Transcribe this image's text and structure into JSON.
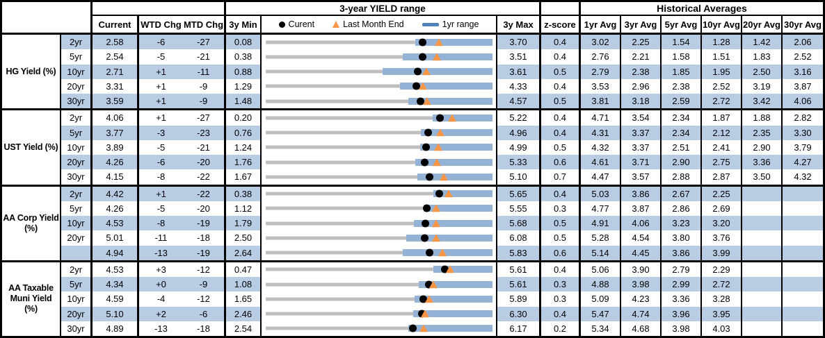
{
  "colors": {
    "row_shade": "#b8cce4",
    "range_bar_1yr": "#95b3d7",
    "full_range_track": "#bfbfbf",
    "current_dot": "#000000",
    "last_month_end_triangle": "#f79646",
    "legend_bar_swatch": "#4f81bd",
    "border": "#000000"
  },
  "chart_data": {
    "type": "table",
    "chart_column_title": "3-year YIELD range",
    "historical_title": "Historical Averages",
    "columns": {
      "current": "Current",
      "wtd_chg": "WTD Chg",
      "mtd_chg": "MTD Chg",
      "min_3y": "3y Min",
      "max_3y": "3y Max",
      "z_score": "z-score"
    },
    "avg_columns": [
      "1yr Avg",
      "3yr Avg",
      "5yr Avg",
      "10yr Avg",
      "20yr Avg",
      "30yr Avg"
    ],
    "legend": [
      {
        "marker": "dot",
        "label": "Curent"
      },
      {
        "marker": "triangle",
        "label": "Last Month End"
      },
      {
        "marker": "bar",
        "label": "1yr range"
      }
    ],
    "chart_notes": "Each row: gray track spans 3y Min to 3y Max; blue bar is 1yr range (r1min to 3y Max); black dot = Current; orange triangle = Last Month End (lme).",
    "groups": [
      {
        "label": "HG Yield (%)",
        "rows": [
          {
            "tenor": "2yr",
            "current": "2.58",
            "wtd": "-6",
            "mtd": "-27",
            "min": "0.08",
            "max": "3.70",
            "z": "0.4",
            "avgs": [
              "3.02",
              "2.25",
              "1.54",
              "1.28",
              "1.42",
              "2.06"
            ],
            "lme": 2.85,
            "r1min": 2.47
          },
          {
            "tenor": "5yr",
            "current": "2.54",
            "wtd": "-5",
            "mtd": "-21",
            "min": "0.38",
            "max": "3.51",
            "z": "0.4",
            "avgs": [
              "2.76",
              "2.21",
              "1.58",
              "1.51",
              "1.83",
              "2.52"
            ],
            "lme": 2.75,
            "r1min": 2.27
          },
          {
            "tenor": "10yr",
            "current": "2.71",
            "wtd": "+1",
            "mtd": "-11",
            "min": "0.88",
            "max": "3.61",
            "z": "0.5",
            "avgs": [
              "2.79",
              "2.38",
              "1.85",
              "1.95",
              "2.50",
              "3.16"
            ],
            "lme": 2.82,
            "r1min": 2.29
          },
          {
            "tenor": "20yr",
            "current": "3.31",
            "wtd": "+1",
            "mtd": "-9",
            "min": "1.29",
            "max": "4.33",
            "z": "0.4",
            "avgs": [
              "3.53",
              "2.96",
              "2.38",
              "2.52",
              "3.19",
              "3.87"
            ],
            "lme": 3.4,
            "r1min": 3.09
          },
          {
            "tenor": "30yr",
            "current": "3.59",
            "wtd": "+1",
            "mtd": "-9",
            "min": "1.48",
            "max": "4.57",
            "z": "0.5",
            "avgs": [
              "3.81",
              "3.18",
              "2.59",
              "2.72",
              "3.42",
              "4.06"
            ],
            "lme": 3.68,
            "r1min": 3.42
          }
        ]
      },
      {
        "label": "UST Yield (%)",
        "rows": [
          {
            "tenor": "2yr",
            "current": "4.06",
            "wtd": "+1",
            "mtd": "-27",
            "min": "0.20",
            "max": "5.22",
            "z": "0.4",
            "avgs": [
              "4.71",
              "3.54",
              "2.34",
              "1.87",
              "1.88",
              "2.82"
            ],
            "lme": 4.33,
            "r1min": 3.89
          },
          {
            "tenor": "5yr",
            "current": "3.77",
            "wtd": "-3",
            "mtd": "-23",
            "min": "0.76",
            "max": "4.96",
            "z": "0.4",
            "avgs": [
              "4.31",
              "3.37",
              "2.34",
              "2.12",
              "2.35",
              "3.30"
            ],
            "lme": 4.0,
            "r1min": 3.63
          },
          {
            "tenor": "10yr",
            "current": "3.89",
            "wtd": "-5",
            "mtd": "-21",
            "min": "1.24",
            "max": "4.99",
            "z": "0.5",
            "avgs": [
              "4.32",
              "3.37",
              "2.51",
              "2.41",
              "2.90",
              "3.79"
            ],
            "lme": 4.1,
            "r1min": 3.79
          },
          {
            "tenor": "20yr",
            "current": "4.26",
            "wtd": "-6",
            "mtd": "-20",
            "min": "1.76",
            "max": "5.33",
            "z": "0.6",
            "avgs": [
              "4.61",
              "3.71",
              "2.90",
              "2.75",
              "3.36",
              "4.27"
            ],
            "lme": 4.46,
            "r1min": 4.11
          },
          {
            "tenor": "30yr",
            "current": "4.15",
            "wtd": "-8",
            "mtd": "-22",
            "min": "1.67",
            "max": "5.10",
            "z": "0.7",
            "avgs": [
              "4.47",
              "3.57",
              "2.88",
              "2.87",
              "3.50",
              "4.32"
            ],
            "lme": 4.37,
            "r1min": 3.96
          }
        ]
      },
      {
        "label": "AA Corp Yield\n(%)",
        "rows": [
          {
            "tenor": "2yr",
            "current": "4.42",
            "wtd": "+1",
            "mtd": "-22",
            "min": "0.38",
            "max": "5.65",
            "z": "0.4",
            "avgs": [
              "5.03",
              "3.86",
              "2.67",
              "2.25",
              "",
              ""
            ],
            "lme": 4.64,
            "r1min": 4.28
          },
          {
            "tenor": "5yr",
            "current": "4.26",
            "wtd": "-5",
            "mtd": "-20",
            "min": "1.12",
            "max": "5.55",
            "z": "0.3",
            "avgs": [
              "4.77",
              "3.87",
              "2.86",
              "2.69",
              "",
              ""
            ],
            "lme": 4.46,
            "r1min": 4.2
          },
          {
            "tenor": "10yr",
            "current": "4.53",
            "wtd": "-8",
            "mtd": "-19",
            "min": "1.79",
            "max": "5.68",
            "z": "0.5",
            "avgs": [
              "4.91",
              "4.06",
              "3.23",
              "3.20",
              "",
              ""
            ],
            "lme": 4.72,
            "r1min": 4.33
          },
          {
            "tenor": "20yr",
            "current": "5.01",
            "wtd": "-11",
            "mtd": "-18",
            "min": "2.50",
            "max": "6.08",
            "z": "0.5",
            "avgs": [
              "5.28",
              "4.54",
              "3.80",
              "3.76",
              "",
              ""
            ],
            "lme": 5.19,
            "r1min": 4.72
          },
          {
            "tenor": "",
            "current": "4.94",
            "wtd": "-13",
            "mtd": "-19",
            "min": "2.64",
            "max": "5.83",
            "z": "0.6",
            "avgs": [
              "5.14",
              "4.45",
              "3.86",
              "3.99",
              "",
              ""
            ],
            "lme": 5.13,
            "r1min": 4.57
          }
        ]
      },
      {
        "label": "AA Taxable\nMuni Yield\n(%)",
        "rows": [
          {
            "tenor": "2yr",
            "current": "4.53",
            "wtd": "+3",
            "mtd": "-12",
            "min": "0.47",
            "max": "5.61",
            "z": "0.4",
            "avgs": [
              "5.06",
              "3.90",
              "2.79",
              "2.29",
              "",
              ""
            ],
            "lme": 4.65,
            "r1min": 4.27
          },
          {
            "tenor": "5yr",
            "current": "4.34",
            "wtd": "+0",
            "mtd": "-9",
            "min": "1.08",
            "max": "5.61",
            "z": "0.3",
            "avgs": [
              "4.88",
              "3.98",
              "2.99",
              "2.72",
              "",
              ""
            ],
            "lme": 4.43,
            "r1min": 4.13
          },
          {
            "tenor": "10yr",
            "current": "4.59",
            "wtd": "-4",
            "mtd": "-12",
            "min": "1.65",
            "max": "5.89",
            "z": "0.3",
            "avgs": [
              "5.09",
              "4.23",
              "3.36",
              "3.28",
              "",
              ""
            ],
            "lme": 4.71,
            "r1min": 4.43
          },
          {
            "tenor": "20yr",
            "current": "5.10",
            "wtd": "+2",
            "mtd": "-6",
            "min": "2.46",
            "max": "6.30",
            "z": "0.4",
            "avgs": [
              "5.47",
              "4.74",
              "3.96",
              "3.95",
              "",
              ""
            ],
            "lme": 5.16,
            "r1min": 4.96
          },
          {
            "tenor": "30yr",
            "current": "4.89",
            "wtd": "-13",
            "mtd": "-18",
            "min": "2.54",
            "max": "6.17",
            "z": "0.2",
            "avgs": [
              "5.34",
              "4.68",
              "3.98",
              "4.03",
              "",
              ""
            ],
            "lme": 5.07,
            "r1min": 4.82
          }
        ]
      }
    ]
  }
}
